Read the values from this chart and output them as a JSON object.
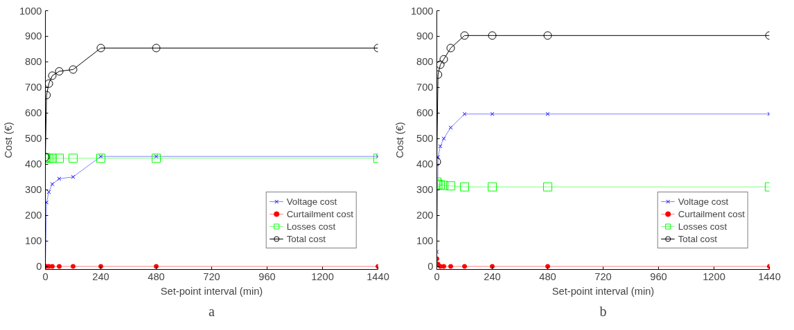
{
  "chart_data": [
    {
      "type": "line",
      "xlabel": "Set-point interval (min)",
      "ylabel": "Cost (€)",
      "x": [
        0,
        5,
        15,
        30,
        60,
        120,
        240,
        480,
        1440
      ],
      "xlim": [
        0,
        1440
      ],
      "xticks": [
        0,
        240,
        480,
        720,
        960,
        1200,
        1440
      ],
      "ylim": [
        0,
        1000
      ],
      "yticks": [
        0,
        100,
        200,
        300,
        400,
        500,
        600,
        700,
        800,
        900,
        1000
      ],
      "grid": false,
      "legend": "bottom right",
      "annotations": [
        "a"
      ],
      "series": [
        {
          "name": "Voltage cost",
          "color": "#0000ff",
          "marker": "cross",
          "values": [
            0,
            250,
            291,
            322,
            343,
            350,
            430,
            430,
            430
          ]
        },
        {
          "name": "Curtailment cost",
          "color": "#ff0000",
          "marker": "circle",
          "values": [
            0,
            0,
            0,
            0,
            0,
            0,
            0,
            0,
            0
          ]
        },
        {
          "name": "Losses cost",
          "color": "#00ff00",
          "marker": "square",
          "values": [
            426,
            423,
            423,
            423,
            423,
            423,
            423,
            423,
            423
          ]
        },
        {
          "name": "Total cost",
          "color": "#000000",
          "marker": "circle",
          "values": [
            428,
            670,
            715,
            746,
            763,
            770,
            854,
            854,
            854
          ]
        }
      ]
    },
    {
      "type": "line",
      "xlabel": "Set-point interval (min)",
      "ylabel": "Cost (€)",
      "x": [
        0,
        5,
        15,
        30,
        60,
        120,
        240,
        480,
        1440
      ],
      "xlim": [
        0,
        1440
      ],
      "xticks": [
        0,
        240,
        480,
        720,
        960,
        1200,
        1440
      ],
      "ylim": [
        0,
        1000
      ],
      "yticks": [
        0,
        100,
        200,
        300,
        400,
        500,
        600,
        700,
        800,
        900,
        1000
      ],
      "grid": false,
      "legend": "bottom right",
      "annotations": [
        "b"
      ],
      "series": [
        {
          "name": "Voltage cost",
          "color": "#0000ff",
          "marker": "cross",
          "values": [
            57,
            428,
            470,
            500,
            543,
            596,
            596,
            596,
            596
          ]
        },
        {
          "name": "Curtailment cost",
          "color": "#ff0000",
          "marker": "circle",
          "values": [
            30,
            9,
            0,
            0,
            0,
            0,
            0,
            0,
            0
          ]
        },
        {
          "name": "Losses cost",
          "color": "#00ff00",
          "marker": "square",
          "values": [
            330,
            322,
            319,
            317,
            315,
            311,
            311,
            311,
            311
          ]
        },
        {
          "name": "Total cost",
          "color": "#000000",
          "marker": "circle",
          "values": [
            409,
            750,
            789,
            810,
            854,
            903,
            903,
            903,
            903
          ]
        }
      ]
    }
  ]
}
